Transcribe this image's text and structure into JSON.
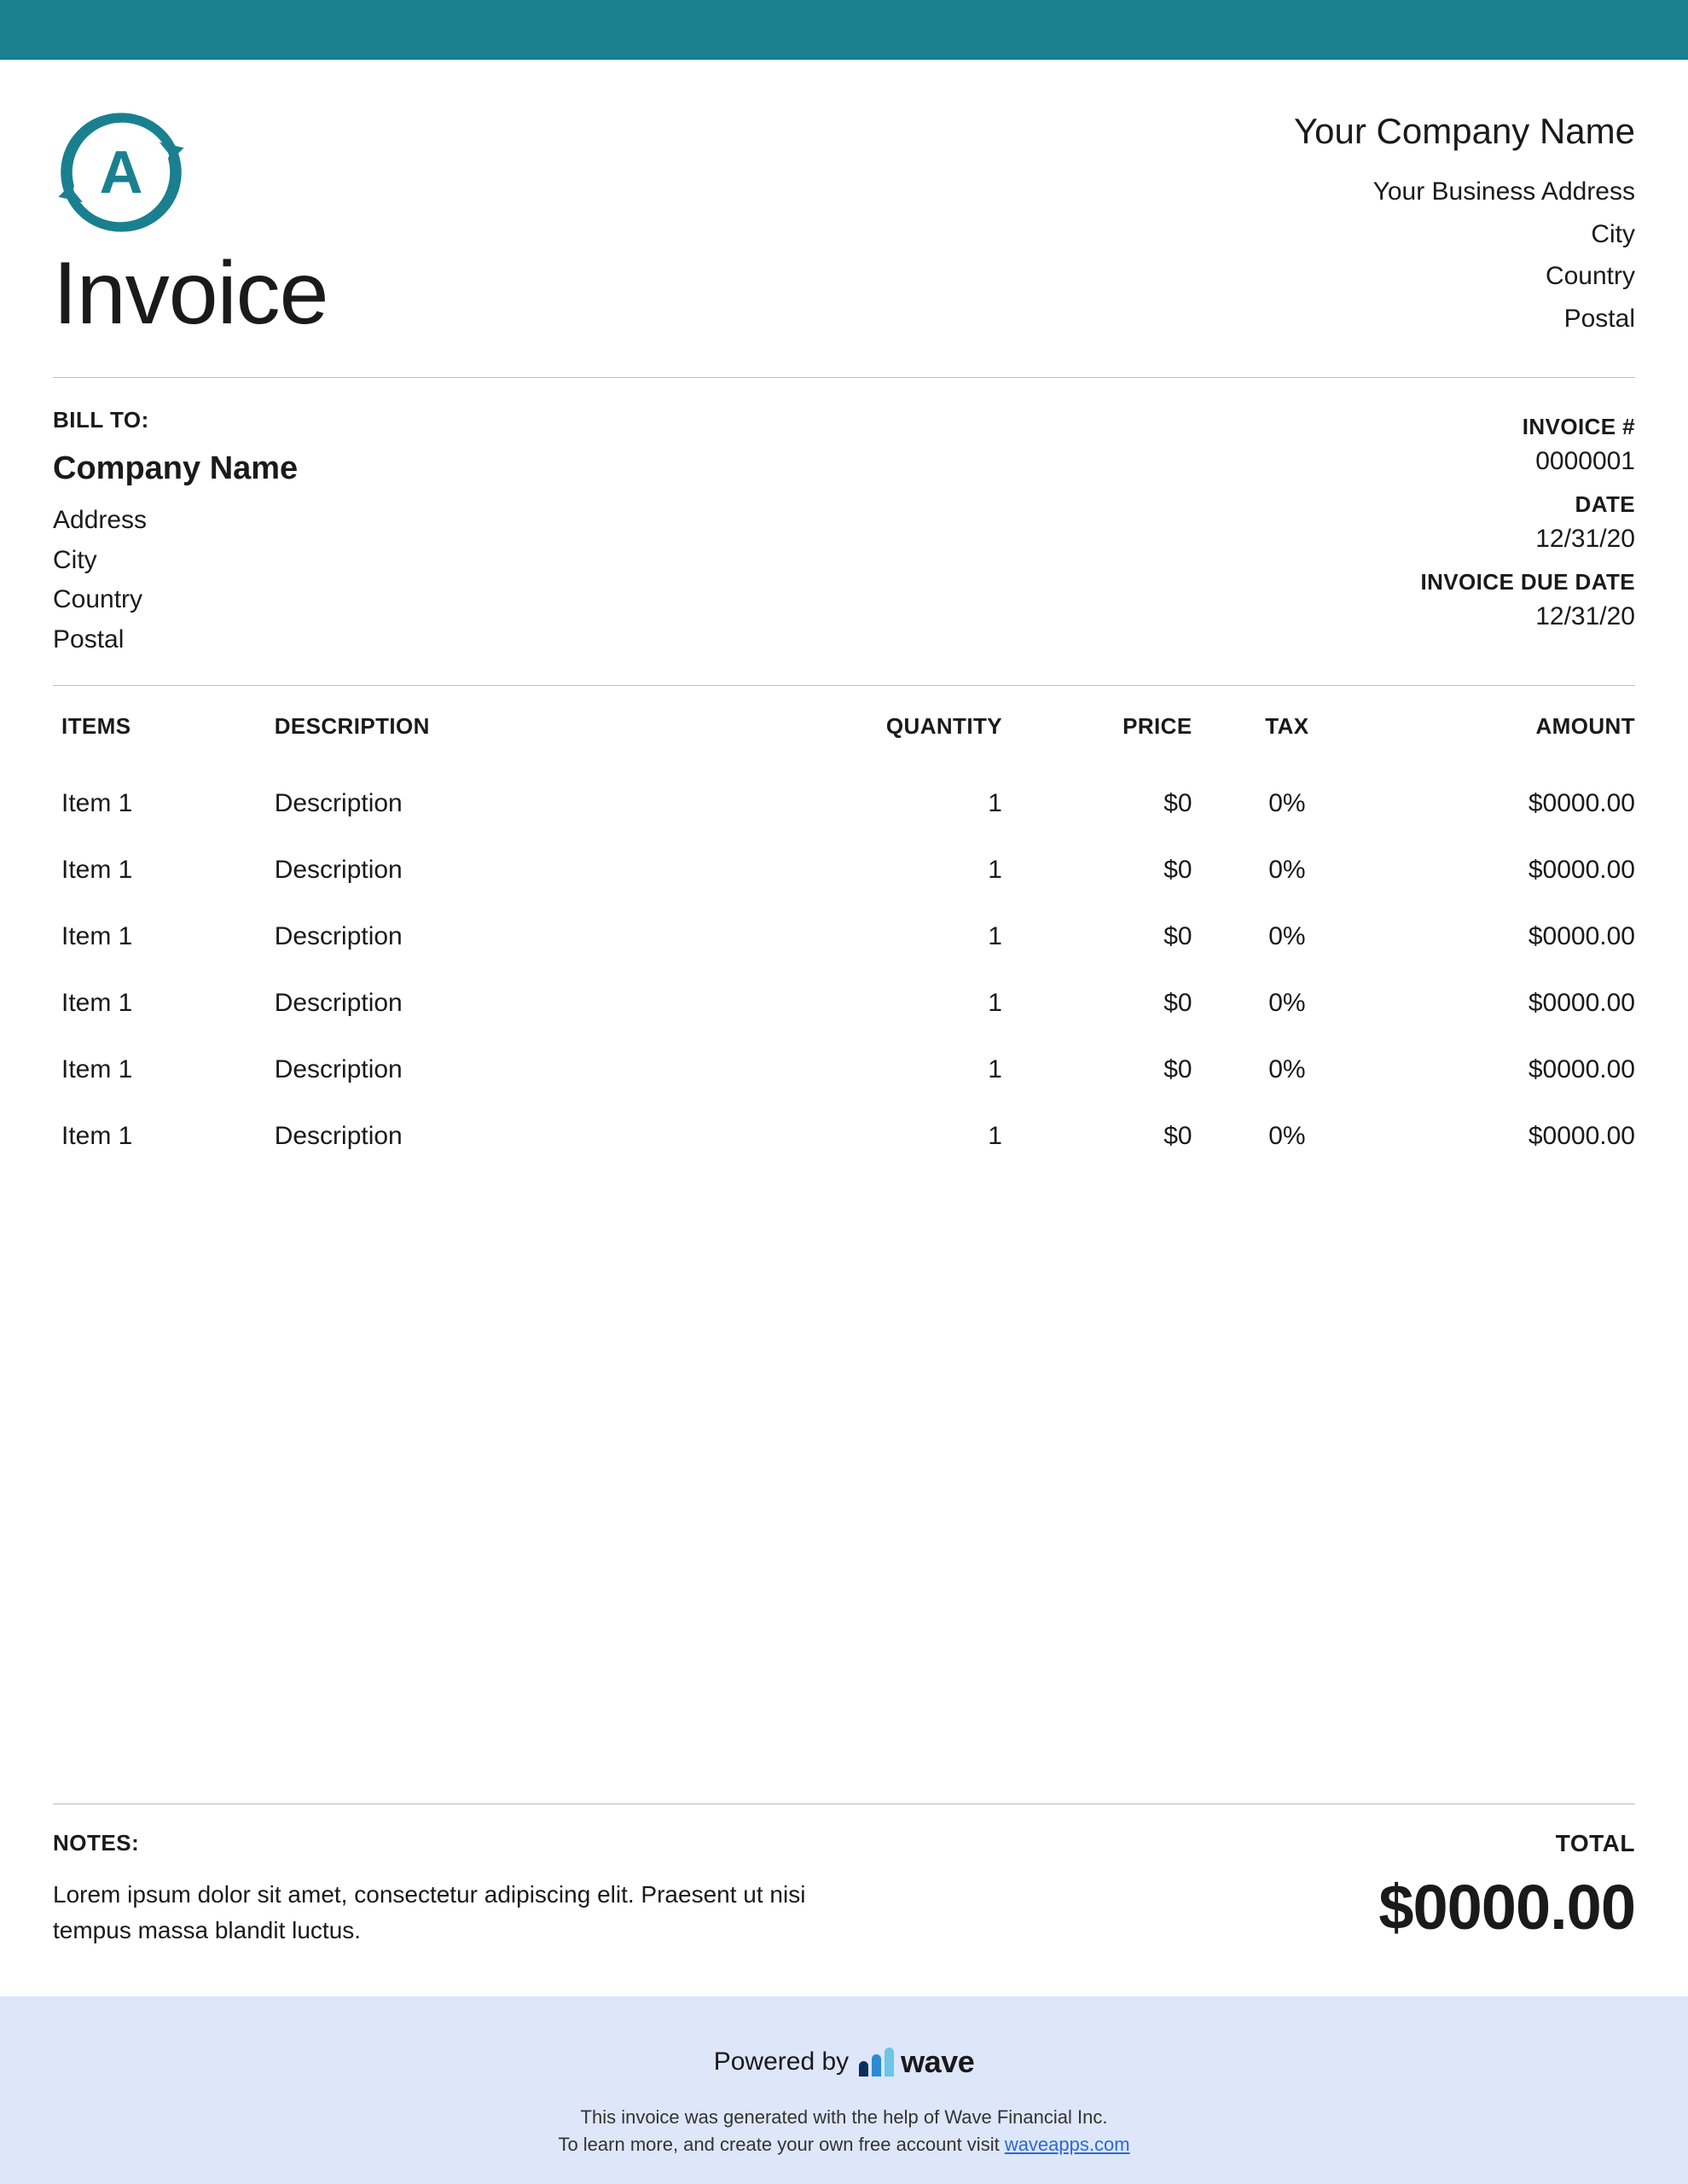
{
  "colors": {
    "top_bar": "#1a808f",
    "logo_stroke": "#1a808f",
    "hr": "#bfbfbf",
    "footer_bg": "#dee6f9",
    "wave_bar1": "#0a2f5c",
    "wave_bar2": "#2b8ad6",
    "wave_bar3": "#6cc6e6",
    "link": "#2a6ad4",
    "background": "#ffffff",
    "text": "#1a1a1a"
  },
  "document": {
    "title": "Invoice",
    "logo_letter": "A"
  },
  "company": {
    "name": "Your Company Name",
    "address": "Your Business Address",
    "city": "City",
    "country": "Country",
    "postal": "Postal"
  },
  "bill_to": {
    "label": "BILL TO:",
    "name": "Company Name",
    "address": "Address",
    "city": "City",
    "country": "Country",
    "postal": "Postal"
  },
  "invoice_meta": {
    "number_label": "INVOICE #",
    "number": "0000001",
    "date_label": "DATE",
    "date": "12/31/20",
    "due_label": "INVOICE DUE DATE",
    "due": "12/31/20"
  },
  "table": {
    "columns": {
      "items": "ITEMS",
      "description": "DESCRIPTION",
      "quantity": "QUANTITY",
      "price": "PRICE",
      "tax": "TAX",
      "amount": "AMOUNT"
    },
    "rows": [
      {
        "item": "Item 1",
        "description": "Description",
        "quantity": "1",
        "price": "$0",
        "tax": "0%",
        "amount": "$0000.00"
      },
      {
        "item": "Item 1",
        "description": "Description",
        "quantity": "1",
        "price": "$0",
        "tax": "0%",
        "amount": "$0000.00"
      },
      {
        "item": "Item 1",
        "description": "Description",
        "quantity": "1",
        "price": "$0",
        "tax": "0%",
        "amount": "$0000.00"
      },
      {
        "item": "Item 1",
        "description": "Description",
        "quantity": "1",
        "price": "$0",
        "tax": "0%",
        "amount": "$0000.00"
      },
      {
        "item": "Item 1",
        "description": "Description",
        "quantity": "1",
        "price": "$0",
        "tax": "0%",
        "amount": "$0000.00"
      },
      {
        "item": "Item 1",
        "description": "Description",
        "quantity": "1",
        "price": "$0",
        "tax": "0%",
        "amount": "$0000.00"
      }
    ]
  },
  "notes": {
    "label": "NOTES:",
    "text": "Lorem ipsum dolor sit amet, consectetur adipiscing elit. Praesent ut nisi tempus massa blandit luctus."
  },
  "total": {
    "label": "TOTAL",
    "value": "$0000.00"
  },
  "footer": {
    "powered_by": "Powered by",
    "brand": "wave",
    "line1": "This invoice was generated with the help of Wave Financial Inc.",
    "line2_prefix": "To learn more, and create your own free account visit ",
    "link_text": "waveapps.com"
  }
}
